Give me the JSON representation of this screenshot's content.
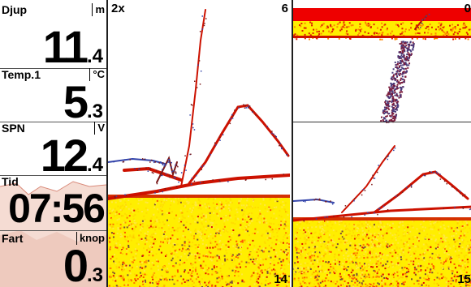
{
  "data_panel": {
    "depth": {
      "label": "Djup",
      "unit": "m",
      "value_int": "11",
      "value_dec": ".4"
    },
    "temp": {
      "label": "Temp.1",
      "unit": "°C",
      "value_int": "5",
      "value_dec": ".3"
    },
    "spn": {
      "label": "SPN",
      "unit": "V",
      "value_int": "12",
      "value_dec": ".4"
    },
    "time": {
      "label": "Tid",
      "value": "07:56"
    },
    "speed": {
      "label": "Fart",
      "unit": "knop",
      "value_int": "0",
      "value_dec": ".3"
    }
  },
  "sonar_main": {
    "zoom_label": "2x",
    "range_top": "6",
    "range_bottom": "14"
  },
  "sonar_zoom": {
    "range_top": "0",
    "range_bottom": "15"
  },
  "colors": {
    "bottom_yellow": "#ffee00",
    "bottom_orange": "#ff9900",
    "echo_red": "#cc1100",
    "echo_dark": "#7a1a1a",
    "target_blue": "#3344aa",
    "surface_red": "#ee0000"
  }
}
